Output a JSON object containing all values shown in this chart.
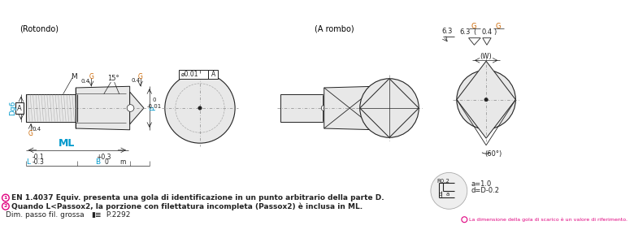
{
  "background_color": "#ffffff",
  "text_rotondo": "(Rotondo)",
  "text_arombo": "(A rombo)",
  "line_color": "#222222",
  "fill_color": "#d0d0d0",
  "fill_light": "#e8e8e8",
  "fill_mid": "#c0c0c0",
  "pink_color": "#e0007f",
  "cyan_color": "#0099cc",
  "orange_color": "#cc6600",
  "dash_color": "#888888",
  "centerline_color": "#888888",
  "footnote1": "EN 1.4037 Equiv. presenta una gola di identificazione in un punto arbitrario della parte D.",
  "footnote2": "Quando L<Passox2, la porzione con filettatura incompleta (Passox2) è inclusa in ML.",
  "footnote3": "Dim. passo fil. grossa",
  "footnote4": "P.2292",
  "footnote5": "La dimensione della gola di scarico è un valore di riferimento."
}
